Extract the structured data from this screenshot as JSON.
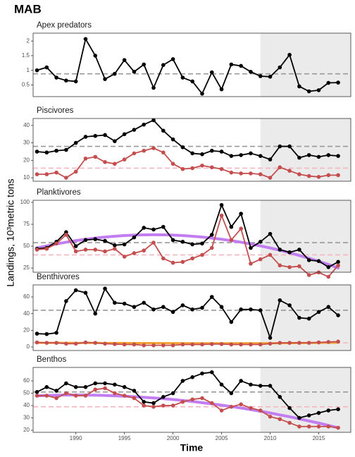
{
  "title": "MAB",
  "xlabel": "Time",
  "ylabel": "Landings, 10³metric tons",
  "chart_data": [
    {
      "type": "line",
      "title": "Apex predators",
      "x": [
        1986,
        1987,
        1988,
        1989,
        1990,
        1991,
        1992,
        1993,
        1994,
        1995,
        1996,
        1997,
        1998,
        1999,
        2000,
        2001,
        2002,
        2003,
        2004,
        2005,
        2006,
        2007,
        2008,
        2009,
        2010,
        2011,
        2012,
        2013,
        2014,
        2015,
        2016,
        2017
      ],
      "xlim": [
        1985.6,
        2018.3
      ],
      "ylim": [
        0.1,
        2.27
      ],
      "yticks": [
        0.5,
        1,
        1.5,
        2
      ],
      "shade_from": 2009,
      "reference_lines": [
        {
          "value": 0.88,
          "color": "#999999"
        }
      ],
      "series": [
        {
          "color": "#000000",
          "markers": true,
          "values": [
            1.0,
            1.1,
            0.75,
            0.65,
            0.62,
            2.07,
            1.5,
            0.7,
            0.88,
            1.35,
            0.95,
            1.2,
            0.4,
            1.18,
            1.38,
            0.75,
            0.62,
            0.2,
            0.93,
            0.35,
            1.2,
            1.15,
            0.95,
            0.8,
            0.78,
            1.1,
            1.53,
            0.45,
            0.28,
            0.32,
            0.57,
            0.58
          ]
        }
      ]
    },
    {
      "type": "line",
      "title": "Piscivores",
      "x": [
        1986,
        1987,
        1988,
        1989,
        1990,
        1991,
        1992,
        1993,
        1994,
        1995,
        1996,
        1997,
        1998,
        1999,
        2000,
        2001,
        2002,
        2003,
        2004,
        2005,
        2006,
        2007,
        2008,
        2009,
        2010,
        2011,
        2012,
        2013,
        2014,
        2015,
        2016,
        2017
      ],
      "xlim": [
        1985.6,
        2018.3
      ],
      "ylim": [
        8,
        44
      ],
      "yticks": [
        10,
        20,
        30,
        40
      ],
      "shade_from": 2009,
      "reference_lines": [
        {
          "value": 28,
          "color": "#999999"
        },
        {
          "value": 15.5,
          "color": "#f4b6c2"
        }
      ],
      "series": [
        {
          "color": "#000000",
          "markers": true,
          "values": [
            25,
            24.5,
            25.5,
            26,
            30,
            33.5,
            34,
            34.5,
            31,
            35,
            37.5,
            40.5,
            43,
            37,
            32,
            27.5,
            24,
            23.5,
            25.5,
            25,
            22.5,
            23,
            24,
            22.5,
            20.5,
            28,
            28,
            21.5,
            23,
            22,
            23,
            22.5
          ]
        },
        {
          "color": "#c44e4e",
          "markers": true,
          "values": [
            12,
            12,
            13,
            10,
            13.5,
            21,
            22,
            19,
            18,
            20.5,
            24,
            25.5,
            27,
            24.5,
            18,
            15,
            15.5,
            17,
            16,
            15,
            13,
            12.5,
            12.5,
            12,
            10,
            16,
            14,
            12,
            11,
            10.5,
            11.5,
            11.5
          ]
        }
      ]
    },
    {
      "type": "line",
      "title": "Planktivores",
      "x": [
        1986,
        1987,
        1988,
        1989,
        1990,
        1991,
        1992,
        1993,
        1994,
        1995,
        1996,
        1997,
        1998,
        1999,
        2000,
        2001,
        2002,
        2003,
        2004,
        2005,
        2006,
        2007,
        2008,
        2009,
        2010,
        2011,
        2012,
        2013,
        2014,
        2015,
        2016,
        2017
      ],
      "xlim": [
        1985.6,
        2018.3
      ],
      "ylim": [
        20.2,
        102.4
      ],
      "yticks": [
        25,
        50,
        75,
        100
      ],
      "shade_from": 2009,
      "reference_lines": [
        {
          "value": 54,
          "color": "#999999"
        },
        {
          "value": 40,
          "color": "#f4b6c2"
        }
      ],
      "series": [
        {
          "color": "#c27ef0",
          "markers": false,
          "width": 4,
          "values": [
            47.9,
            50.3,
            52.5,
            54.5,
            56.3,
            57.9,
            59.2,
            60.4,
            61.3,
            62.1,
            62.6,
            62.9,
            63,
            62.9,
            62.6,
            62.1,
            61.3,
            60.4,
            59.2,
            57.9,
            56.3,
            54.5,
            52.5,
            50.3,
            47.9,
            45.3,
            42.4,
            39.4,
            36.1,
            32.7,
            29.0,
            25.1
          ]
        },
        {
          "color": "#000000",
          "markers": true,
          "values": [
            47,
            48,
            55,
            66,
            50,
            57,
            58,
            56,
            51,
            52,
            60,
            71,
            69,
            72,
            57,
            55,
            52,
            53,
            63,
            97,
            72,
            87,
            48,
            55,
            64,
            46,
            43,
            46,
            34,
            33,
            26,
            32
          ]
        },
        {
          "color": "#c44e4e",
          "markers": true,
          "values": [
            46,
            47,
            53,
            63,
            44,
            46,
            46,
            44,
            47,
            38,
            42,
            45,
            54,
            36,
            31,
            32,
            36,
            40,
            48,
            85,
            57,
            70,
            30,
            35,
            40,
            28,
            26,
            27,
            17,
            20,
            15,
            28
          ]
        }
      ]
    },
    {
      "type": "line",
      "title": "Benthivores",
      "x": [
        1986,
        1987,
        1988,
        1989,
        1990,
        1991,
        1992,
        1993,
        1994,
        1995,
        1996,
        1997,
        1998,
        1999,
        2000,
        2001,
        2002,
        2003,
        2004,
        2005,
        2006,
        2007,
        2008,
        2009,
        2010,
        2011,
        2012,
        2013,
        2014,
        2015,
        2016,
        2017
      ],
      "xlim": [
        1985.6,
        2018.3
      ],
      "ylim": [
        -4.2,
        74.4
      ],
      "yticks": [
        0,
        20,
        40,
        60
      ],
      "shade_from": 2009,
      "reference_lines": [
        {
          "value": 44,
          "color": "#999999"
        },
        {
          "value": 5,
          "color": "#f4b6c2"
        }
      ],
      "series": [
        {
          "color": "#f0a030",
          "markers": false,
          "width": 3,
          "values": [
            5,
            5,
            5,
            5,
            4.9,
            4.9,
            4.9,
            4.8,
            4.8,
            4.8,
            4.7,
            4.7,
            4.7,
            4.6,
            4.6,
            4.6,
            4.5,
            4.5,
            4.5,
            4.5,
            4.5,
            4.5,
            4.5,
            4.5,
            4.6,
            4.6,
            4.7,
            4.8,
            4.9,
            5,
            5.1,
            5.2
          ]
        },
        {
          "color": "#000000",
          "markers": true,
          "values": [
            16,
            15.5,
            17,
            55,
            68,
            65,
            40,
            70,
            53,
            52,
            48,
            53,
            45,
            48,
            42,
            50,
            45,
            47,
            60,
            48,
            30,
            45,
            45,
            44,
            11,
            56,
            50,
            35,
            34,
            42,
            48,
            38
          ]
        },
        {
          "color": "#c44e4e",
          "markers": true,
          "values": [
            5.5,
            5,
            5,
            4,
            4,
            5.5,
            5,
            4,
            3.5,
            3,
            3,
            2,
            2,
            2,
            2,
            3,
            3,
            3,
            3.5,
            3.5,
            3,
            3,
            3,
            3,
            4,
            5,
            5,
            5,
            5,
            5.5,
            6,
            6.5
          ]
        }
      ]
    },
    {
      "type": "line",
      "title": "Benthos",
      "x": [
        1986,
        1987,
        1988,
        1989,
        1990,
        1991,
        1992,
        1993,
        1994,
        1995,
        1996,
        1997,
        1998,
        1999,
        2000,
        2001,
        2002,
        2003,
        2004,
        2005,
        2006,
        2007,
        2008,
        2009,
        2010,
        2011,
        2012,
        2013,
        2014,
        2015,
        2016,
        2017
      ],
      "xlim": [
        1985.6,
        2018.3
      ],
      "xticks": [
        1990,
        1995,
        2000,
        2005,
        2010,
        2015
      ],
      "ylim": [
        18.3,
        70.9
      ],
      "yticks": [
        20,
        30,
        40,
        50,
        60
      ],
      "shade_from": 2009,
      "reference_lines": [
        {
          "value": 51,
          "color": "#999999"
        },
        {
          "value": 39,
          "color": "#f4b6c2"
        }
      ],
      "series": [
        {
          "color": "#c27ef0",
          "markers": false,
          "width": 4,
          "values": [
            47.9,
            48.2,
            48.4,
            48.5,
            48.5,
            48.5,
            48.4,
            48.2,
            47.9,
            47.6,
            47.2,
            46.7,
            46.2,
            45.6,
            44.9,
            44.1,
            43.3,
            42.3,
            41.4,
            40.3,
            39.2,
            38.0,
            36.7,
            35.4,
            34.0,
            32.4,
            30.9,
            29.2,
            27.5,
            25.8,
            23.9,
            22.0
          ]
        },
        {
          "color": "#000000",
          "markers": true,
          "values": [
            51,
            55,
            52,
            58,
            55,
            55,
            58,
            58,
            57,
            55,
            52,
            43,
            42,
            47,
            50,
            60,
            63,
            66,
            67,
            57,
            50,
            60,
            57,
            56,
            56,
            47,
            38,
            30,
            32,
            34,
            36,
            37
          ]
        },
        {
          "color": "#c44e4e",
          "markers": true,
          "values": [
            48,
            48,
            46,
            50,
            48,
            48,
            53,
            54,
            50,
            48,
            46,
            40,
            39,
            40,
            40,
            43,
            45,
            46,
            42,
            36,
            39,
            41,
            38,
            36,
            31,
            29,
            26,
            23,
            23,
            23,
            23,
            22
          ]
        }
      ]
    }
  ]
}
